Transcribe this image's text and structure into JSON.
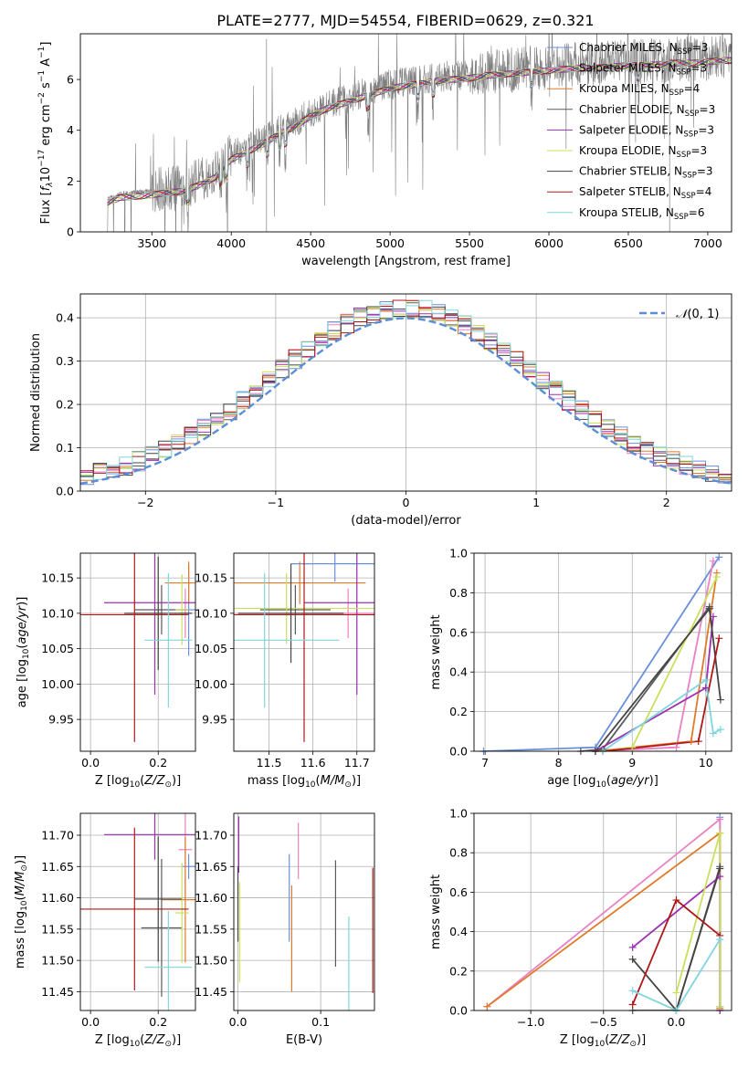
{
  "figure_title": "PLATE=2777, MJD=54554, FIBERID=0629, z=0.321",
  "models": [
    {
      "name": "Chabrier MILES",
      "nssp": "3",
      "color": "#6a8fdb"
    },
    {
      "name": "Salpeter MILES",
      "nssp": "3",
      "color": "#e882c4"
    },
    {
      "name": "Kroupa MILES",
      "nssp": "4",
      "color": "#e07a2a"
    },
    {
      "name": "Chabrier ELODIE",
      "nssp": "3",
      "color": "#5a5a5a"
    },
    {
      "name": "Salpeter ELODIE",
      "nssp": "3",
      "color": "#9b30b0"
    },
    {
      "name": "Kroupa ELODIE",
      "nssp": "3",
      "color": "#c8e05a"
    },
    {
      "name": "Chabrier STELIB",
      "nssp": "3",
      "color": "#444444"
    },
    {
      "name": "Salpeter STELIB",
      "nssp": "4",
      "color": "#b01818"
    },
    {
      "name": "Kroupa STELIB",
      "nssp": "6",
      "color": "#7fd6dc"
    }
  ],
  "chart_data": [
    {
      "id": "spectrum",
      "type": "line",
      "xlabel": "wavelength [Angstrom, rest frame]",
      "ylabel": "Flux [f_λ 10^-17 erg cm^-2 s^-1 A^-1]",
      "xlim": [
        3050,
        7150
      ],
      "ylim": [
        0,
        7.8
      ],
      "xticks": [
        3500,
        4000,
        4500,
        5000,
        5500,
        6000,
        6500,
        7000
      ],
      "yticks": [
        0,
        2,
        4,
        6
      ],
      "grid": false,
      "legend": "top-right",
      "data_color": "#808080",
      "continuum_x": [
        3220,
        3300,
        3400,
        3500,
        3600,
        3700,
        3800,
        3900,
        4000,
        4100,
        4200,
        4300,
        4400,
        4500,
        4600,
        4700,
        4800,
        4900,
        5000,
        5100,
        5200,
        5300,
        5400,
        5500,
        5600,
        5700,
        5800,
        5900,
        6000,
        6100,
        6200,
        6300,
        6400,
        6500,
        6600,
        6700,
        6800,
        6900,
        7000,
        7100
      ],
      "continuum_y": [
        1.3,
        1.5,
        1.55,
        1.6,
        1.7,
        1.75,
        2.0,
        2.3,
        3.0,
        3.3,
        3.6,
        4.0,
        4.3,
        4.7,
        5.0,
        5.2,
        5.4,
        5.6,
        5.8,
        5.9,
        6.0,
        6.1,
        6.15,
        6.2,
        6.3,
        6.35,
        6.4,
        6.45,
        6.5,
        6.55,
        6.6,
        6.6,
        6.65,
        6.7,
        6.7,
        6.75,
        6.8,
        6.8,
        6.85,
        6.9
      ]
    },
    {
      "id": "residual-hist",
      "type": "line",
      "xlabel": "(data-model)/error",
      "ylabel": "Normed distribution",
      "xlim": [
        -2.5,
        2.5
      ],
      "ylim": [
        0,
        0.455
      ],
      "xticks": [
        -2,
        -1,
        0,
        1,
        2
      ],
      "yticks": [
        0.0,
        0.1,
        0.2,
        0.3,
        0.4
      ],
      "grid": true,
      "legend": "top-right",
      "normal_label": "N(0, 1)",
      "normal_color": "#5b8ed6",
      "bin_width": 0.1
    },
    {
      "id": "age-vs-Z",
      "type": "scatter",
      "xlabel": "Z [log10(Z/Z⊙)]",
      "ylabel": "age [log10(age/yr)]",
      "xlim": [
        -0.03,
        0.31
      ],
      "ylim": [
        9.905,
        10.185
      ],
      "xticks": [
        0.0,
        0.2
      ],
      "yticks": [
        9.95,
        10.0,
        10.05,
        10.1,
        10.15
      ],
      "grid": true,
      "points": [
        {
          "x": 0.29,
          "xerr": 0.02,
          "y": 10.105,
          "yerr": 0.065
        },
        {
          "x": 0.28,
          "xerr": 0.02,
          "y": 10.1,
          "yerr": 0.035
        },
        {
          "x": 0.29,
          "xerr": 0.07,
          "y": 10.143,
          "yerr": 0.03
        },
        {
          "x": 0.21,
          "xerr": 0.08,
          "y": 10.105,
          "yerr": 0.035
        },
        {
          "x": 0.19,
          "xerr": 0.15,
          "y": 10.115,
          "yerr": 0.13
        },
        {
          "x": 0.27,
          "xerr": 0.02,
          "y": 10.105,
          "yerr": 0.05
        },
        {
          "x": 0.2,
          "xerr": 0.1,
          "y": 10.1,
          "yerr": 0.08
        },
        {
          "x": 0.13,
          "xerr": 0.16,
          "y": 10.098,
          "yerr": 0.18
        },
        {
          "x": 0.23,
          "xerr": 0.07,
          "y": 10.062,
          "yerr": 0.095
        }
      ]
    },
    {
      "id": "age-vs-mass",
      "type": "scatter",
      "xlabel": "mass [log10(M/M⊙)]",
      "ylabel": "",
      "xlim": [
        11.42,
        11.74
      ],
      "ylim": [
        9.905,
        10.185
      ],
      "xticks": [
        11.5,
        11.6,
        11.7
      ],
      "yticks": [
        9.95,
        10.0,
        10.05,
        10.1,
        10.15
      ],
      "grid": true,
      "points": [
        {
          "x": 11.65,
          "xerr": 0.1,
          "y": 10.17,
          "yerr": 0.025
        },
        {
          "x": 11.68,
          "xerr": 0.08,
          "y": 10.1,
          "yerr": 0.035
        },
        {
          "x": 11.57,
          "xerr": 0.15,
          "y": 10.143,
          "yerr": 0.03
        },
        {
          "x": 11.56,
          "xerr": 0.08,
          "y": 10.105,
          "yerr": 0.035
        },
        {
          "x": 11.7,
          "xerr": 0.12,
          "y": 10.115,
          "yerr": 0.13
        },
        {
          "x": 11.54,
          "xerr": 0.2,
          "y": 10.107,
          "yerr": 0.05
        },
        {
          "x": 11.55,
          "xerr": 0.12,
          "y": 10.1,
          "yerr": 0.07
        },
        {
          "x": 11.58,
          "xerr": 0.17,
          "y": 10.098,
          "yerr": 0.18
        },
        {
          "x": 11.49,
          "xerr": 0.17,
          "y": 10.062,
          "yerr": 0.095
        }
      ]
    },
    {
      "id": "massweight-vs-age",
      "type": "line",
      "xlabel": "age [log10(age/yr)]",
      "ylabel": "mass weight",
      "xlim": [
        6.85,
        10.35
      ],
      "ylim": [
        0,
        1.0
      ],
      "xticks": [
        7,
        8,
        9,
        10
      ],
      "yticks": [
        0.0,
        0.2,
        0.4,
        0.6,
        0.8,
        1.0
      ],
      "grid": true,
      "series": [
        {
          "x": [
            6.98,
            8.5,
            10.18
          ],
          "y": [
            0.0,
            0.02,
            0.98
          ]
        },
        {
          "x": [
            8.5,
            9.6,
            10.1
          ],
          "y": [
            0.0,
            0.02,
            0.96
          ]
        },
        {
          "x": [
            8.5,
            9.8,
            10.15
          ],
          "y": [
            0.0,
            0.05,
            0.9
          ]
        },
        {
          "x": [
            8.3,
            8.6,
            10.05
          ],
          "y": [
            0.0,
            0.01,
            0.73
          ]
        },
        {
          "x": [
            8.5,
            10.0,
            10.1
          ],
          "y": [
            0.0,
            0.32,
            0.68
          ]
        },
        {
          "x": [
            8.6,
            9.0,
            10.15
          ],
          "y": [
            0.0,
            0.02,
            0.88
          ]
        },
        {
          "x": [
            8.5,
            10.05,
            10.2
          ],
          "y": [
            0.0,
            0.72,
            0.26
          ]
        },
        {
          "x": [
            8.6,
            9.9,
            10.18
          ],
          "y": [
            0.0,
            0.05,
            0.57
          ]
        },
        {
          "x": [
            8.6,
            10.0,
            10.1,
            10.2
          ],
          "y": [
            0.0,
            0.36,
            0.09,
            0.11
          ]
        }
      ]
    },
    {
      "id": "mass-vs-Z",
      "type": "scatter",
      "xlabel": "Z [log10(Z/Z⊙)]",
      "ylabel": "mass [log10(M/M⊙)]",
      "xlim": [
        -0.03,
        0.31
      ],
      "ylim": [
        11.42,
        11.735
      ],
      "xticks": [
        0.0,
        0.2
      ],
      "yticks": [
        11.45,
        11.5,
        11.55,
        11.6,
        11.65,
        11.7
      ],
      "grid": true,
      "points": [
        {
          "x": 0.29,
          "xerr": 0.02,
          "y": 11.65,
          "yerr": 0.02
        },
        {
          "x": 0.28,
          "xerr": 0.02,
          "y": 11.677,
          "yerr": 0.08
        },
        {
          "x": 0.28,
          "xerr": 0.07,
          "y": 11.597,
          "yerr": 0.1
        },
        {
          "x": 0.21,
          "xerr": 0.06,
          "y": 11.552,
          "yerr": 0.11
        },
        {
          "x": 0.19,
          "xerr": 0.15,
          "y": 11.701,
          "yerr": 0.04
        },
        {
          "x": 0.27,
          "xerr": 0.02,
          "y": 11.576,
          "yerr": 0.08
        },
        {
          "x": 0.2,
          "xerr": 0.07,
          "y": 11.598,
          "yerr": 0.1
        },
        {
          "x": 0.13,
          "xerr": 0.16,
          "y": 11.582,
          "yerr": 0.13
        },
        {
          "x": 0.23,
          "xerr": 0.07,
          "y": 11.489,
          "yerr": 0.09
        }
      ]
    },
    {
      "id": "mass-vs-EBV",
      "type": "scatter",
      "xlabel": "E(B-V)",
      "ylabel": "",
      "xlim": [
        -0.005,
        0.165
      ],
      "ylim": [
        11.42,
        11.735
      ],
      "xticks": [
        0.0,
        0.1
      ],
      "yticks": [
        11.45,
        11.5,
        11.55,
        11.6,
        11.65,
        11.7
      ],
      "grid": true,
      "points": [
        {
          "x": 0.062,
          "y": 11.6,
          "yerr": 0.07
        },
        {
          "x": 0.073,
          "y": 11.675,
          "yerr": 0.045
        },
        {
          "x": 0.065,
          "y": 11.535,
          "yerr": 0.085
        },
        {
          "x": 0.118,
          "y": 11.575,
          "yerr": 0.085
        },
        {
          "x": 0.001,
          "y": 11.685,
          "yerr": 0.045
        },
        {
          "x": 0.002,
          "y": 11.545,
          "yerr": 0.08
        },
        {
          "x": 0.0,
          "y": 11.59,
          "yerr": 0.06
        },
        {
          "x": 0.163,
          "y": 11.548,
          "yerr": 0.1
        },
        {
          "x": 0.134,
          "y": 11.475,
          "yerr": 0.095
        }
      ]
    },
    {
      "id": "massweight-vs-Z",
      "type": "line",
      "xlabel": "Z [log10(Z/Z⊙)]",
      "ylabel": "mass weight",
      "xlim": [
        -1.39,
        0.38
      ],
      "ylim": [
        0,
        1.0
      ],
      "xticks": [
        -1.0,
        -0.5,
        0.0
      ],
      "yticks": [
        0.0,
        0.2,
        0.4,
        0.6,
        0.8,
        1.0
      ],
      "grid": true,
      "series": [
        {
          "x": [
            0.3,
            0.3,
            0.3
          ],
          "y": [
            0.98,
            0.0,
            0.02
          ]
        },
        {
          "x": [
            -1.3,
            0.3,
            0.3
          ],
          "y": [
            0.02,
            0.97,
            0.01
          ]
        },
        {
          "x": [
            -1.3,
            0.3,
            0.3
          ],
          "y": [
            0.02,
            0.9,
            0.01
          ]
        },
        {
          "x": [
            -0.3,
            0.0,
            0.3
          ],
          "y": [
            0.0,
            0.0,
            0.73
          ]
        },
        {
          "x": [
            -0.3,
            0.3,
            0.3
          ],
          "y": [
            0.32,
            0.68,
            0.0
          ]
        },
        {
          "x": [
            0.0,
            0.3,
            0.3
          ],
          "y": [
            0.09,
            0.9,
            0.02
          ]
        },
        {
          "x": [
            -0.3,
            0.0,
            0.3
          ],
          "y": [
            0.26,
            0.0,
            0.72
          ]
        },
        {
          "x": [
            -0.3,
            0.0,
            0.3
          ],
          "y": [
            0.03,
            0.56,
            0.38
          ]
        },
        {
          "x": [
            -0.3,
            0.0,
            0.3
          ],
          "y": [
            0.1,
            0.0,
            0.36
          ]
        }
      ]
    }
  ]
}
